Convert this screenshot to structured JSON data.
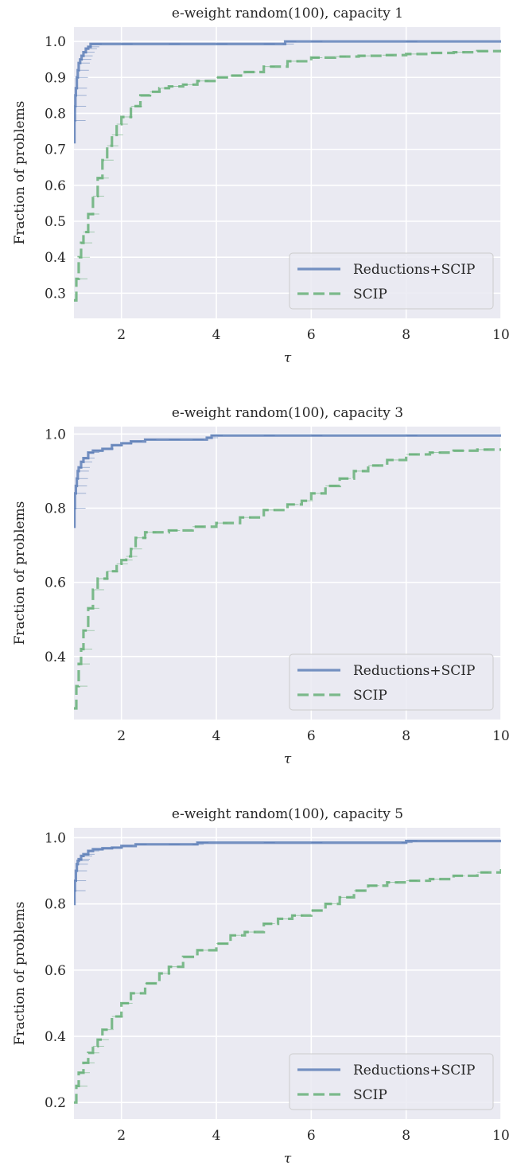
{
  "chart_data": [
    {
      "type": "line",
      "title": "e-weight random(100), capacity 1",
      "xlabel": "τ",
      "ylabel": "Fraction of problems",
      "xlim": [
        1,
        10
      ],
      "ylim": [
        0.23,
        1.04
      ],
      "xticks": [
        2,
        4,
        6,
        8,
        10
      ],
      "xtick_labels": [
        "2",
        "4",
        "6",
        "8",
        "10"
      ],
      "yticks": [
        0.3,
        0.4,
        0.5,
        0.6,
        0.7,
        0.8,
        0.9,
        1.0
      ],
      "ytick_labels": [
        "0.3",
        "0.4",
        "0.5",
        "0.6",
        "0.7",
        "0.8",
        "0.9",
        "1.0"
      ],
      "grid": true,
      "legend_position": "lower-right",
      "series": [
        {
          "name": "Reductions+SCIP",
          "color": "#4c72b0",
          "style": "solid",
          "x": [
            1.0,
            1.01,
            1.02,
            1.03,
            1.04,
            1.06,
            1.08,
            1.1,
            1.13,
            1.16,
            1.2,
            1.25,
            1.3,
            1.35,
            2.0,
            3.0,
            4.0,
            5.0,
            5.4,
            5.45,
            6.0,
            8.0,
            10.0
          ],
          "y": [
            0.72,
            0.78,
            0.82,
            0.85,
            0.87,
            0.9,
            0.92,
            0.94,
            0.95,
            0.96,
            0.97,
            0.98,
            0.985,
            0.993,
            0.993,
            0.993,
            0.993,
            0.993,
            0.993,
            1.0,
            1.0,
            1.0,
            1.0
          ]
        },
        {
          "name": "SCIP",
          "color": "#55a868",
          "style": "dashed",
          "x": [
            1.0,
            1.05,
            1.1,
            1.15,
            1.2,
            1.3,
            1.4,
            1.5,
            1.6,
            1.7,
            1.8,
            1.9,
            2.0,
            2.2,
            2.4,
            2.6,
            2.8,
            3.0,
            3.3,
            3.6,
            4.0,
            4.3,
            4.6,
            5.0,
            5.5,
            6.0,
            6.5,
            7.0,
            7.5,
            8.0,
            8.5,
            9.0,
            9.5,
            10.0
          ],
          "y": [
            0.28,
            0.34,
            0.4,
            0.44,
            0.47,
            0.52,
            0.57,
            0.62,
            0.67,
            0.71,
            0.74,
            0.77,
            0.79,
            0.82,
            0.85,
            0.86,
            0.87,
            0.875,
            0.88,
            0.89,
            0.9,
            0.905,
            0.915,
            0.93,
            0.945,
            0.955,
            0.958,
            0.96,
            0.962,
            0.965,
            0.968,
            0.97,
            0.973,
            0.975
          ]
        }
      ]
    },
    {
      "type": "line",
      "title": "e-weight random(100), capacity 3",
      "xlabel": "τ",
      "ylabel": "Fraction of problems",
      "xlim": [
        1,
        10
      ],
      "ylim": [
        0.23,
        1.02
      ],
      "xticks": [
        2,
        4,
        6,
        8,
        10
      ],
      "xtick_labels": [
        "2",
        "4",
        "6",
        "8",
        "10"
      ],
      "yticks": [
        0.4,
        0.6,
        0.8,
        1.0
      ],
      "ytick_labels": [
        "0.4",
        "0.6",
        "0.8",
        "1.0"
      ],
      "grid": true,
      "legend_position": "lower-right",
      "series": [
        {
          "name": "Reductions+SCIP",
          "color": "#4c72b0",
          "style": "solid",
          "x": [
            1.0,
            1.01,
            1.02,
            1.04,
            1.06,
            1.08,
            1.1,
            1.15,
            1.2,
            1.3,
            1.4,
            1.6,
            1.8,
            2.0,
            2.2,
            2.5,
            3.0,
            3.5,
            3.8,
            3.9,
            5.0,
            6.0,
            8.0,
            10.0
          ],
          "y": [
            0.75,
            0.8,
            0.84,
            0.86,
            0.88,
            0.9,
            0.91,
            0.925,
            0.935,
            0.95,
            0.955,
            0.96,
            0.97,
            0.975,
            0.98,
            0.985,
            0.985,
            0.985,
            0.99,
            0.996,
            0.996,
            0.996,
            0.996,
            0.996
          ]
        },
        {
          "name": "SCIP",
          "color": "#55a868",
          "style": "dashed",
          "x": [
            1.0,
            1.05,
            1.1,
            1.15,
            1.2,
            1.3,
            1.4,
            1.5,
            1.7,
            1.9,
            2.0,
            2.1,
            2.2,
            2.3,
            2.5,
            3.0,
            3.5,
            4.0,
            4.5,
            5.0,
            5.5,
            5.8,
            6.0,
            6.3,
            6.6,
            6.9,
            7.2,
            7.6,
            8.0,
            8.5,
            9.0,
            9.5,
            10.0
          ],
          "y": [
            0.26,
            0.32,
            0.38,
            0.42,
            0.47,
            0.53,
            0.58,
            0.61,
            0.63,
            0.65,
            0.66,
            0.67,
            0.69,
            0.72,
            0.735,
            0.74,
            0.75,
            0.76,
            0.775,
            0.795,
            0.81,
            0.82,
            0.84,
            0.86,
            0.88,
            0.9,
            0.915,
            0.93,
            0.945,
            0.95,
            0.955,
            0.958,
            0.96
          ]
        }
      ]
    },
    {
      "type": "line",
      "title": "e-weight random(100), capacity 5",
      "xlabel": "τ",
      "ylabel": "Fraction of problems",
      "xlim": [
        1,
        10
      ],
      "ylim": [
        0.15,
        1.03
      ],
      "xticks": [
        2,
        4,
        6,
        8,
        10
      ],
      "xtick_labels": [
        "2",
        "4",
        "6",
        "8",
        "10"
      ],
      "yticks": [
        0.2,
        0.4,
        0.6,
        0.8,
        1.0
      ],
      "ytick_labels": [
        "0.2",
        "0.4",
        "0.6",
        "0.8",
        "1.0"
      ],
      "grid": true,
      "legend_position": "lower-right",
      "series": [
        {
          "name": "Reductions+SCIP",
          "color": "#4c72b0",
          "style": "solid",
          "x": [
            1.0,
            1.01,
            1.02,
            1.04,
            1.06,
            1.08,
            1.1,
            1.15,
            1.2,
            1.3,
            1.4,
            1.6,
            1.8,
            2.0,
            2.3,
            3.0,
            3.5,
            3.6,
            5.0,
            6.0,
            7.9,
            8.0,
            10.0
          ],
          "y": [
            0.8,
            0.84,
            0.87,
            0.9,
            0.92,
            0.93,
            0.935,
            0.945,
            0.95,
            0.96,
            0.965,
            0.968,
            0.97,
            0.975,
            0.98,
            0.98,
            0.98,
            0.985,
            0.985,
            0.985,
            0.985,
            0.99,
            0.99
          ]
        },
        {
          "name": "SCIP",
          "color": "#55a868",
          "style": "dashed",
          "x": [
            1.0,
            1.05,
            1.1,
            1.2,
            1.3,
            1.4,
            1.5,
            1.6,
            1.8,
            2.0,
            2.2,
            2.5,
            2.8,
            3.0,
            3.3,
            3.6,
            4.0,
            4.3,
            4.6,
            5.0,
            5.3,
            5.6,
            6.0,
            6.3,
            6.6,
            6.9,
            7.2,
            7.6,
            8.0,
            8.5,
            9.0,
            9.5,
            10.0
          ],
          "y": [
            0.2,
            0.25,
            0.29,
            0.32,
            0.35,
            0.37,
            0.39,
            0.42,
            0.46,
            0.5,
            0.53,
            0.56,
            0.59,
            0.61,
            0.64,
            0.66,
            0.68,
            0.705,
            0.715,
            0.74,
            0.755,
            0.765,
            0.78,
            0.8,
            0.82,
            0.84,
            0.855,
            0.865,
            0.87,
            0.875,
            0.885,
            0.895,
            0.905
          ]
        }
      ]
    }
  ]
}
